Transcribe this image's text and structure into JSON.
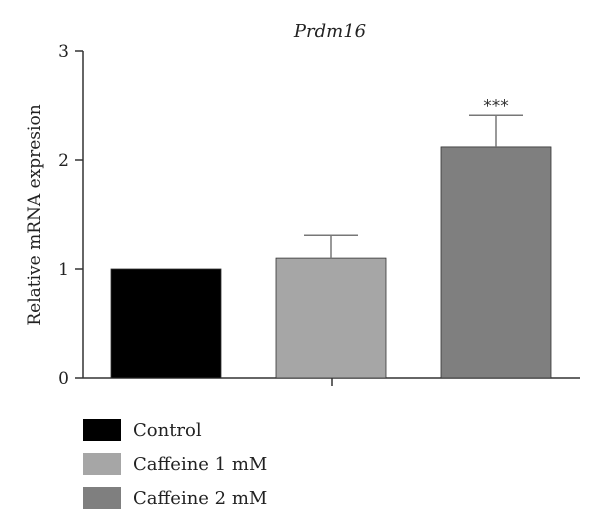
{
  "chart_data": {
    "type": "bar",
    "title": "Prdm16",
    "ylabel": "Relative mRNA expresion",
    "xlabel": "",
    "ylim": [
      0,
      3
    ],
    "yticks": [
      "0",
      "1",
      "2",
      "3"
    ],
    "categories": [
      "Control",
      "Caffeine 1 mM",
      "Caffeine 2 mM"
    ],
    "values": [
      1.0,
      1.1,
      2.12
    ],
    "error_upper": [
      0,
      0.21,
      0.29
    ],
    "colors": [
      "#000000",
      "#a6a6a6",
      "#7f7f7f"
    ],
    "annotations": [
      {
        "category": "Caffeine 2 mM",
        "text": "***"
      }
    ],
    "legend_placement": "bottom-left",
    "grid": false
  }
}
